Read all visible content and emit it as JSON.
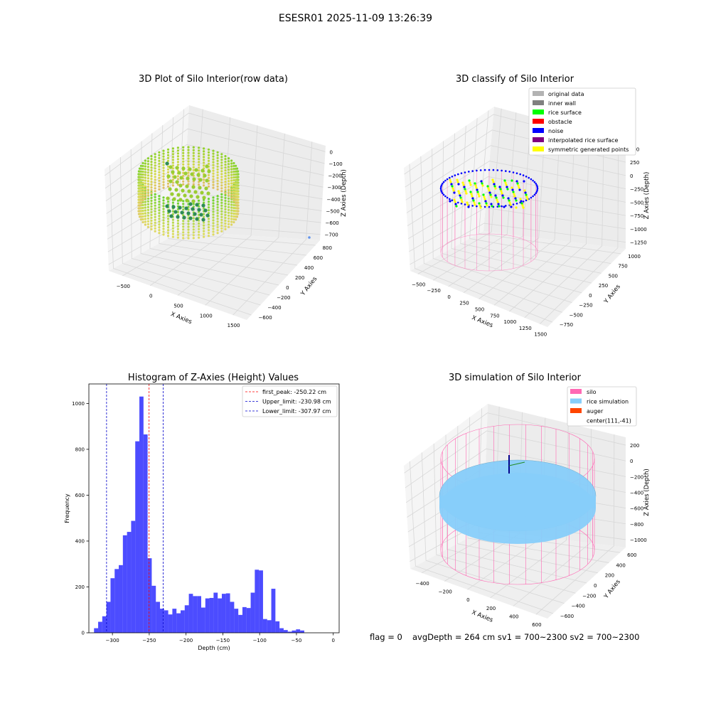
{
  "suptitle": "ESESR01 2025-11-09 13:26:39",
  "panels": {
    "raw": {
      "title": "3D Plot of Silo Interior(row data)",
      "xlabel": "X Axies",
      "ylabel": "Y Axies",
      "zlabel": "Z Axies (Depth)",
      "xticks": [
        "−500",
        "0",
        "500",
        "1000",
        "1500"
      ],
      "yticks": [
        "800",
        "600",
        "400",
        "200",
        "0",
        "−200",
        "−400",
        "−600"
      ],
      "zticks": [
        "0",
        "−100",
        "−200",
        "−300",
        "−400",
        "−500",
        "−600",
        "−700"
      ]
    },
    "classify": {
      "title": "3D classify of Silo Interior",
      "xlabel": "X Axies",
      "ylabel": "Y Axies",
      "zlabel": "Z Axies (Depth)",
      "xticks": [
        "−500",
        "−250",
        "0",
        "250",
        "500",
        "750",
        "1000",
        "1250",
        "1500"
      ],
      "yticks": [
        "1000",
        "750",
        "500",
        "250",
        "0",
        "−250",
        "−500",
        "−750"
      ],
      "zticks": [
        "500",
        "250",
        "0",
        "−250",
        "−500",
        "−750",
        "−1000",
        "−1250"
      ]
    },
    "sim": {
      "title": "3D simulation of Silo Interior",
      "xlabel": "X Axies",
      "ylabel": "Y Axies",
      "zlabel": "Z Axies (Depth)",
      "xticks": [
        "−400",
        "−200",
        "0",
        "200",
        "400",
        "600"
      ],
      "yticks": [
        "600",
        "400",
        "200",
        "0",
        "−200",
        "−400",
        "−600"
      ],
      "zticks": [
        "200",
        "0",
        "−200",
        "−400",
        "−600",
        "−800",
        "−1000"
      ]
    }
  },
  "footer": {
    "flag": "flag = 0",
    "stats": "avgDepth = 264 cm  sv1 = 700~2300  sv2 = 700~2300"
  },
  "colors": {
    "pane": "#f2f2f2",
    "grid": "#d7d7d7",
    "hist_bar": "#0000ff",
    "peak_line": "#ff0000",
    "limit_line": "#0000cc",
    "silo": "#ff69b4",
    "rice": "#87cefa"
  },
  "chart_data": [
    {
      "type": "scatter",
      "title": "3D Plot of Silo Interior(row data)",
      "projection": "3d",
      "xlabel": "X Axies",
      "ylabel": "Y Axies",
      "zlabel": "Z Axies (Depth)",
      "xlim": [
        -650,
        1600
      ],
      "ylim": [
        -650,
        900
      ],
      "zlim": [
        -720,
        20
      ],
      "colormap": "viridis (by depth)",
      "description_values": {
        "depth_range": [
          -520,
          -150
        ]
      }
    },
    {
      "type": "scatter",
      "title": "3D classify of Silo Interior",
      "projection": "3d",
      "xlabel": "X Axies",
      "ylabel": "Y Axies",
      "zlabel": "Z Axies (Depth)",
      "xlim": [
        -550,
        1550
      ],
      "ylim": [
        -850,
        1050
      ],
      "zlim": [
        -1300,
        550
      ],
      "legend_position": "top-right",
      "legend": [
        {
          "name": "original data",
          "color": "#b3b3b3"
        },
        {
          "name": "inner wall",
          "color": "#808080"
        },
        {
          "name": "rice surface",
          "color": "#00ff00"
        },
        {
          "name": "obstacle",
          "color": "#ff0000"
        },
        {
          "name": "noise",
          "color": "#0000ff"
        },
        {
          "name": "interpolated rice surface",
          "color": "#800080"
        },
        {
          "name": "symmetric generated points",
          "color": "#ffff00"
        }
      ]
    },
    {
      "type": "bar",
      "title": "Histogram of Z-Axies (Height) Values",
      "xlabel": "Depth (cm)",
      "ylabel": "Frequency",
      "xlim": [
        -332,
        8
      ],
      "ylim": [
        0,
        1085
      ],
      "xticks": [
        -300,
        -250,
        -200,
        -150,
        -100,
        -50,
        0
      ],
      "yticks": [
        0,
        200,
        400,
        600,
        800,
        1000
      ],
      "xtick_labels": [
        "−300",
        "−250",
        "−200",
        "−150",
        "−100",
        "−50",
        "0"
      ],
      "ytick_labels": [
        "0",
        "200",
        "400",
        "600",
        "800",
        "1000"
      ],
      "legend_position": "top-right",
      "bin_start": -325,
      "bin_width": 5.6,
      "bin_counts": [
        20,
        48,
        72,
        135,
        238,
        278,
        295,
        425,
        440,
        488,
        835,
        1030,
        865,
        325,
        205,
        135,
        105,
        98,
        80,
        105,
        85,
        98,
        120,
        170,
        160,
        160,
        110,
        150,
        152,
        175,
        150,
        170,
        172,
        135,
        105,
        78,
        112,
        108,
        175,
        275,
        272,
        60,
        55,
        192,
        50,
        20,
        12,
        5,
        10,
        15,
        10
      ],
      "lines": [
        {
          "label": "first_peak: -250.22 cm",
          "x": -250.22,
          "color": "#ff0000"
        },
        {
          "label": "Upper_limit: -230.98 cm",
          "x": -230.98,
          "color": "#0000cc"
        },
        {
          "label": "Lower_limit: -307.97 cm",
          "x": -307.97,
          "color": "#0000cc"
        }
      ]
    },
    {
      "type": "scatter",
      "title": "3D simulation of Silo Interior",
      "projection": "3d",
      "xlabel": "X Axies",
      "ylabel": "Y Axies",
      "zlabel": "Z Axies (Depth)",
      "xlim": [
        -500,
        700
      ],
      "ylim": [
        -700,
        650
      ],
      "zlim": [
        -1050,
        250
      ],
      "legend_position": "top-right",
      "legend": [
        {
          "name": "silo",
          "color": "#ff69b4"
        },
        {
          "name": "rice simulation",
          "color": "#87cefa"
        },
        {
          "name": "auger",
          "color": "#ff4500"
        },
        {
          "name": "center(111,-41)",
          "color": ""
        }
      ]
    }
  ]
}
